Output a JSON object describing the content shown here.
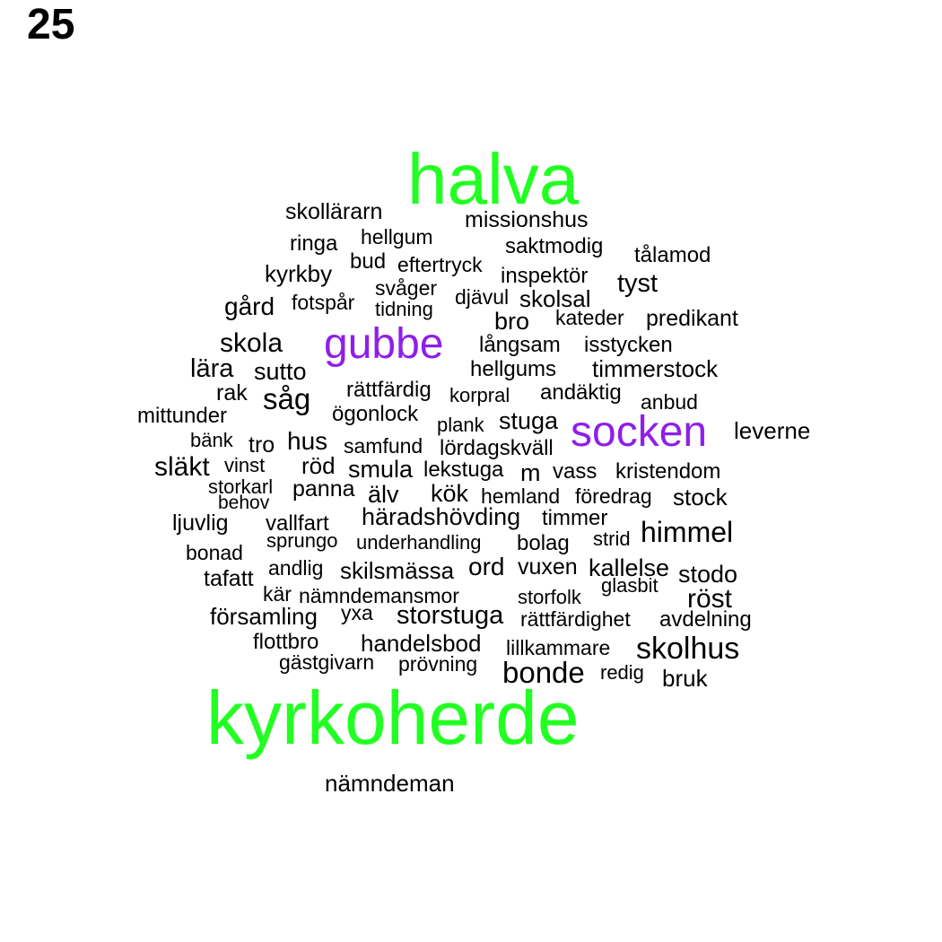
{
  "page_number": "25",
  "colors": {
    "primary": "#22ff22",
    "secondary": "#8f1fe8",
    "default": "#000000"
  },
  "words": [
    {
      "text": "halva",
      "tier": "primary"
    },
    {
      "text": "kyrkoherde",
      "tier": "primary"
    },
    {
      "text": "gubbe",
      "tier": "secondary"
    },
    {
      "text": "socken",
      "tier": "secondary"
    },
    {
      "text": "skollärarn",
      "tier": "default"
    },
    {
      "text": "missionshus",
      "tier": "default"
    },
    {
      "text": "ringa",
      "tier": "default"
    },
    {
      "text": "hellgum",
      "tier": "default"
    },
    {
      "text": "saktmodig",
      "tier": "default"
    },
    {
      "text": "tålamod",
      "tier": "default"
    },
    {
      "text": "bud",
      "tier": "default"
    },
    {
      "text": "eftertryck",
      "tier": "default"
    },
    {
      "text": "kyrkby",
      "tier": "default"
    },
    {
      "text": "inspektör",
      "tier": "default"
    },
    {
      "text": "tyst",
      "tier": "default"
    },
    {
      "text": "svåger",
      "tier": "default"
    },
    {
      "text": "djävul",
      "tier": "default"
    },
    {
      "text": "skolsal",
      "tier": "default"
    },
    {
      "text": "gård",
      "tier": "default"
    },
    {
      "text": "fotspår",
      "tier": "default"
    },
    {
      "text": "tidning",
      "tier": "default"
    },
    {
      "text": "kateder",
      "tier": "default"
    },
    {
      "text": "bro",
      "tier": "default"
    },
    {
      "text": "predikant",
      "tier": "default"
    },
    {
      "text": "skola",
      "tier": "default"
    },
    {
      "text": "långsam",
      "tier": "default"
    },
    {
      "text": "isstycken",
      "tier": "default"
    },
    {
      "text": "lära",
      "tier": "default"
    },
    {
      "text": "sutto",
      "tier": "default"
    },
    {
      "text": "hellgums",
      "tier": "default"
    },
    {
      "text": "timmerstock",
      "tier": "default"
    },
    {
      "text": "rak",
      "tier": "default"
    },
    {
      "text": "såg",
      "tier": "default"
    },
    {
      "text": "rättfärdig",
      "tier": "default"
    },
    {
      "text": "korpral",
      "tier": "default"
    },
    {
      "text": "andäktig",
      "tier": "default"
    },
    {
      "text": "anbud",
      "tier": "default"
    },
    {
      "text": "mittunder",
      "tier": "default"
    },
    {
      "text": "ögonlock",
      "tier": "default"
    },
    {
      "text": "plank",
      "tier": "default"
    },
    {
      "text": "stuga",
      "tier": "default"
    },
    {
      "text": "leverne",
      "tier": "default"
    },
    {
      "text": "bänk",
      "tier": "default"
    },
    {
      "text": "tro",
      "tier": "default"
    },
    {
      "text": "hus",
      "tier": "default"
    },
    {
      "text": "samfund",
      "tier": "default"
    },
    {
      "text": "lördagskväll",
      "tier": "default"
    },
    {
      "text": "släkt",
      "tier": "default"
    },
    {
      "text": "vinst",
      "tier": "default"
    },
    {
      "text": "röd",
      "tier": "default"
    },
    {
      "text": "smula",
      "tier": "default"
    },
    {
      "text": "lekstuga",
      "tier": "default"
    },
    {
      "text": "m",
      "tier": "default"
    },
    {
      "text": "vass",
      "tier": "default"
    },
    {
      "text": "kristendom",
      "tier": "default"
    },
    {
      "text": "storkarl",
      "tier": "default"
    },
    {
      "text": "panna",
      "tier": "default"
    },
    {
      "text": "behov",
      "tier": "default"
    },
    {
      "text": "älv",
      "tier": "default"
    },
    {
      "text": "kök",
      "tier": "default"
    },
    {
      "text": "hemland",
      "tier": "default"
    },
    {
      "text": "föredrag",
      "tier": "default"
    },
    {
      "text": "stock",
      "tier": "default"
    },
    {
      "text": "häradshövding",
      "tier": "default"
    },
    {
      "text": "timmer",
      "tier": "default"
    },
    {
      "text": "ljuvlig",
      "tier": "default"
    },
    {
      "text": "vallfart",
      "tier": "default"
    },
    {
      "text": "himmel",
      "tier": "default"
    },
    {
      "text": "sprungo",
      "tier": "default"
    },
    {
      "text": "underhandling",
      "tier": "default"
    },
    {
      "text": "bolag",
      "tier": "default"
    },
    {
      "text": "strid",
      "tier": "default"
    },
    {
      "text": "bonad",
      "tier": "default"
    },
    {
      "text": "andlig",
      "tier": "default"
    },
    {
      "text": "skilsmässa",
      "tier": "default"
    },
    {
      "text": "ord",
      "tier": "default"
    },
    {
      "text": "vuxen",
      "tier": "default"
    },
    {
      "text": "kallelse",
      "tier": "default"
    },
    {
      "text": "stodo",
      "tier": "default"
    },
    {
      "text": "tafatt",
      "tier": "default"
    },
    {
      "text": "glasbit",
      "tier": "default"
    },
    {
      "text": "kär",
      "tier": "default"
    },
    {
      "text": "nämndemansmor",
      "tier": "default"
    },
    {
      "text": "storfolk",
      "tier": "default"
    },
    {
      "text": "röst",
      "tier": "default"
    },
    {
      "text": "församling",
      "tier": "default"
    },
    {
      "text": "yxa",
      "tier": "default"
    },
    {
      "text": "storstuga",
      "tier": "default"
    },
    {
      "text": "rättfärdighet",
      "tier": "default"
    },
    {
      "text": "avdelning",
      "tier": "default"
    },
    {
      "text": "flottbro",
      "tier": "default"
    },
    {
      "text": "handelsbod",
      "tier": "default"
    },
    {
      "text": "lillkammare",
      "tier": "default"
    },
    {
      "text": "skolhus",
      "tier": "default"
    },
    {
      "text": "gästgivarn",
      "tier": "default"
    },
    {
      "text": "prövning",
      "tier": "default"
    },
    {
      "text": "bonde",
      "tier": "default"
    },
    {
      "text": "redig",
      "tier": "default"
    },
    {
      "text": "bruk",
      "tier": "default"
    },
    {
      "text": "nämndeman",
      "tier": "default"
    }
  ]
}
